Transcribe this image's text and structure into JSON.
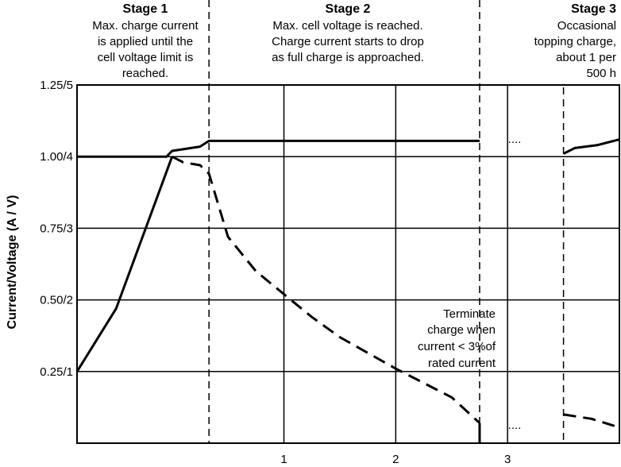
{
  "chart_data": {
    "type": "line",
    "xticks": [
      "1",
      "2",
      "3"
    ],
    "yticks": [
      "0.25/1",
      "0.50/2",
      "0.75/3",
      "1.00/4",
      "1.25/5"
    ],
    "ylabel": "Current/Voltage (A / V)",
    "xlim": [
      -0.85,
      4.0
    ],
    "ylim": [
      0,
      1.25
    ],
    "grid": true,
    "stages": [
      {
        "title": "Stage 1",
        "lines": [
          "Max. charge current",
          "is applied until the",
          "cell voltage limit is",
          "reached."
        ]
      },
      {
        "title": "Stage 2",
        "lines": [
          "Max. cell voltage is reached.",
          "Charge current starts to drop",
          "as full charge is approached."
        ]
      },
      {
        "title": "Stage 3",
        "lines": [
          "Occasional",
          "topping charge,",
          "about 1 per",
          "500 h"
        ]
      }
    ],
    "stage_boundaries": [
      0.33,
      2.75
    ],
    "topping_boundary": 3.5,
    "annotation": [
      "Terminate",
      "charge when",
      "current < 3%of",
      "rated current"
    ],
    "ellipsis": [
      "....",
      "...."
    ],
    "series": [
      {
        "style": "solid",
        "points": [
          [
            -0.85,
            1.0
          ],
          [
            -0.05,
            1.0
          ],
          [
            0.0,
            1.02
          ],
          [
            0.25,
            1.035
          ],
          [
            0.33,
            1.055
          ],
          [
            2.75,
            1.055
          ]
        ]
      },
      {
        "style": "solid",
        "points": [
          [
            -0.85,
            0.25
          ],
          [
            -0.5,
            0.47
          ],
          [
            0.0,
            1.0
          ]
        ]
      },
      {
        "style": "dashed",
        "points": [
          [
            0.0,
            1.0
          ],
          [
            0.1,
            0.98
          ],
          [
            0.25,
            0.97
          ],
          [
            0.33,
            0.94
          ],
          [
            0.5,
            0.72
          ],
          [
            0.75,
            0.6
          ],
          [
            1.0,
            0.52
          ],
          [
            1.25,
            0.44
          ],
          [
            1.5,
            0.37
          ],
          [
            2.0,
            0.26
          ],
          [
            2.5,
            0.16
          ],
          [
            2.75,
            0.07
          ]
        ]
      },
      {
        "style": "solid",
        "points": [
          [
            3.5,
            1.01
          ],
          [
            3.6,
            1.03
          ],
          [
            3.8,
            1.04
          ],
          [
            4.0,
            1.06
          ]
        ]
      },
      {
        "style": "dashed",
        "points": [
          [
            3.5,
            0.1
          ],
          [
            3.75,
            0.085
          ],
          [
            4.0,
            0.055
          ]
        ]
      }
    ]
  }
}
